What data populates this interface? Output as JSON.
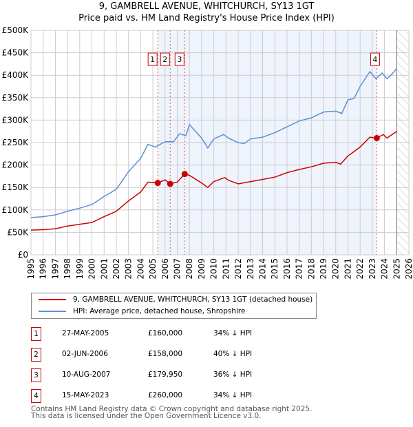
{
  "chart_data": {
    "type": "line",
    "title": "9, GAMBRELL AVENUE, WHITCHURCH, SY13 1GT",
    "subtitle": "Price paid vs. HM Land Registry's House Price Index (HPI)",
    "xlim": [
      1995,
      2026
    ],
    "ylim": [
      0,
      500000
    ],
    "y_ticks": [
      {
        "v": 0,
        "label": "£0"
      },
      {
        "v": 50000,
        "label": "£50K"
      },
      {
        "v": 100000,
        "label": "£100K"
      },
      {
        "v": 150000,
        "label": "£150K"
      },
      {
        "v": 200000,
        "label": "£200K"
      },
      {
        "v": 250000,
        "label": "£250K"
      },
      {
        "v": 300000,
        "label": "£300K"
      },
      {
        "v": 350000,
        "label": "£350K"
      },
      {
        "v": 400000,
        "label": "£400K"
      },
      {
        "v": 450000,
        "label": "£450K"
      },
      {
        "v": 500000,
        "label": "£500K"
      }
    ],
    "x_ticks": [
      "1995",
      "1996",
      "1997",
      "1998",
      "1999",
      "2000",
      "2001",
      "2002",
      "2003",
      "2004",
      "2005",
      "2006",
      "2007",
      "2008",
      "2009",
      "2010",
      "2011",
      "2012",
      "2013",
      "2014",
      "2015",
      "2016",
      "2017",
      "2018",
      "2019",
      "2020",
      "2021",
      "2022",
      "2023",
      "2024",
      "2025",
      "2026"
    ],
    "grid": true,
    "shaded_range": [
      2005.4,
      2023.37
    ],
    "forecast_hatch_from": 2025.0,
    "series": [
      {
        "name": "9, GAMBRELL AVENUE, WHITCHURCH, SY13 1GT (detached house)",
        "color": "#cc0000",
        "points": [
          [
            1995,
            55000
          ],
          [
            1996,
            56000
          ],
          [
            1997,
            58000
          ],
          [
            1998,
            64000
          ],
          [
            1999,
            68000
          ],
          [
            2000,
            72000
          ],
          [
            2001,
            85000
          ],
          [
            2002,
            97000
          ],
          [
            2003,
            120000
          ],
          [
            2004,
            140000
          ],
          [
            2004.6,
            162000
          ],
          [
            2005.4,
            160000
          ],
          [
            2006,
            167000
          ],
          [
            2006.42,
            158000
          ],
          [
            2007,
            162000
          ],
          [
            2007.61,
            180000
          ],
          [
            2008,
            177000
          ],
          [
            2009,
            160000
          ],
          [
            2009.5,
            150000
          ],
          [
            2010,
            163000
          ],
          [
            2010.9,
            172000
          ],
          [
            2011.2,
            166000
          ],
          [
            2012,
            158000
          ],
          [
            2013,
            163000
          ],
          [
            2014,
            168000
          ],
          [
            2015,
            173000
          ],
          [
            2016,
            183000
          ],
          [
            2017,
            190000
          ],
          [
            2018,
            196000
          ],
          [
            2019,
            204000
          ],
          [
            2020,
            206000
          ],
          [
            2020.4,
            202000
          ],
          [
            2021,
            220000
          ],
          [
            2022,
            240000
          ],
          [
            2022.8,
            262000
          ],
          [
            2023.37,
            260000
          ],
          [
            2023.9,
            268000
          ],
          [
            2024.2,
            260000
          ],
          [
            2025,
            275000
          ]
        ]
      },
      {
        "name": "HPI: Average price, detached house, Shropshire",
        "color": "#5b8fd6",
        "points": [
          [
            1995,
            83000
          ],
          [
            1996,
            85000
          ],
          [
            1997,
            89000
          ],
          [
            1998,
            97000
          ],
          [
            1999,
            104000
          ],
          [
            2000,
            112000
          ],
          [
            2001,
            130000
          ],
          [
            2002,
            146000
          ],
          [
            2003,
            185000
          ],
          [
            2004,
            215000
          ],
          [
            2004.6,
            246000
          ],
          [
            2005.2,
            240000
          ],
          [
            2006,
            252000
          ],
          [
            2006.7,
            252000
          ],
          [
            2007.2,
            270000
          ],
          [
            2007.7,
            265000
          ],
          [
            2008,
            290000
          ],
          [
            2008.5,
            275000
          ],
          [
            2009,
            260000
          ],
          [
            2009.5,
            238000
          ],
          [
            2010,
            258000
          ],
          [
            2010.8,
            268000
          ],
          [
            2011.2,
            260000
          ],
          [
            2012,
            250000
          ],
          [
            2012.5,
            248000
          ],
          [
            2013,
            258000
          ],
          [
            2014,
            262000
          ],
          [
            2015,
            272000
          ],
          [
            2016,
            285000
          ],
          [
            2017,
            298000
          ],
          [
            2018,
            305000
          ],
          [
            2019,
            318000
          ],
          [
            2020,
            320000
          ],
          [
            2020.5,
            315000
          ],
          [
            2021,
            345000
          ],
          [
            2021.5,
            348000
          ],
          [
            2022,
            375000
          ],
          [
            2022.8,
            408000
          ],
          [
            2023.3,
            392000
          ],
          [
            2023.8,
            405000
          ],
          [
            2024.2,
            392000
          ],
          [
            2024.6,
            402000
          ],
          [
            2025,
            415000
          ]
        ]
      }
    ],
    "sales": [
      {
        "n": "1",
        "x": 2005.4,
        "price": 160000,
        "date": "27-MAY-2005",
        "price_label": "£160,000",
        "hpi": "34% ↓ HPI"
      },
      {
        "n": "2",
        "x": 2006.42,
        "price": 158000,
        "date": "02-JUN-2006",
        "price_label": "£158,000",
        "hpi": "40% ↓ HPI"
      },
      {
        "n": "3",
        "x": 2007.61,
        "price": 179950,
        "date": "10-AUG-2007",
        "price_label": "£179,950",
        "hpi": "36% ↓ HPI"
      },
      {
        "n": "4",
        "x": 2023.37,
        "price": 260000,
        "date": "15-MAY-2023",
        "price_label": "£260,000",
        "hpi": "34% ↓ HPI"
      }
    ]
  },
  "footer": {
    "line1": "Contains HM Land Registry data © Crown copyright and database right 2025.",
    "line2": "This data is licensed under the Open Government Licence v3.0."
  }
}
